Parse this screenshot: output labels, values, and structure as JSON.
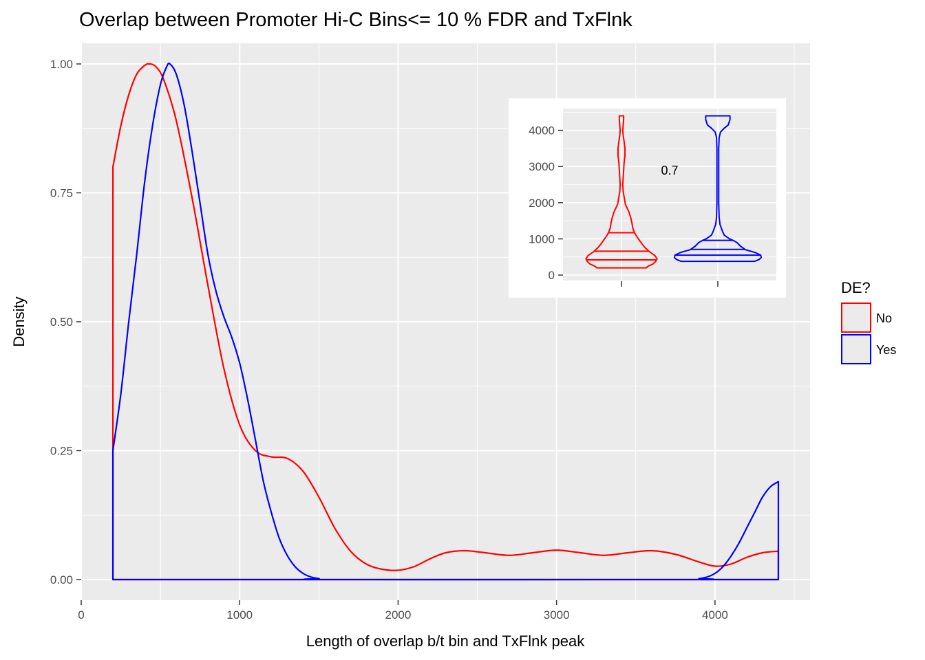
{
  "chart_data": {
    "type": "line",
    "title": "Overlap between Promoter Hi-C Bins<= 10 % FDR and TxFlnk",
    "xlabel": "Length of overlap b/t bin and TxFlnk peak",
    "ylabel": "Density",
    "xlim": [
      0,
      4600
    ],
    "ylim": [
      -0.04,
      1.04
    ],
    "x_ticks": [
      0,
      1000,
      2000,
      3000,
      4000
    ],
    "y_ticks": [
      0.0,
      0.25,
      0.5,
      0.75,
      1.0
    ],
    "x_tick_labels": [
      "0",
      "1000",
      "2000",
      "3000",
      "4000"
    ],
    "y_tick_labels": [
      "0.00",
      "0.25",
      "0.50",
      "0.75",
      "1.00"
    ],
    "grid": true,
    "legend": {
      "title": "DE?",
      "position": "right",
      "entries": [
        {
          "label": "No",
          "color": "#ff0000"
        },
        {
          "label": "Yes",
          "color": "#0000ff"
        }
      ]
    },
    "series": [
      {
        "name": "No",
        "color": "#ff0000",
        "points": [
          [
            200,
            0.0
          ],
          [
            200,
            0.8
          ],
          [
            250,
            0.88
          ],
          [
            300,
            0.94
          ],
          [
            350,
            0.98
          ],
          [
            400,
            0.997
          ],
          [
            430,
            1.0
          ],
          [
            470,
            0.995
          ],
          [
            520,
            0.97
          ],
          [
            600,
            0.89
          ],
          [
            700,
            0.74
          ],
          [
            800,
            0.57
          ],
          [
            900,
            0.41
          ],
          [
            1000,
            0.3
          ],
          [
            1100,
            0.25
          ],
          [
            1200,
            0.238
          ],
          [
            1300,
            0.235
          ],
          [
            1400,
            0.21
          ],
          [
            1500,
            0.16
          ],
          [
            1600,
            0.1
          ],
          [
            1700,
            0.055
          ],
          [
            1800,
            0.03
          ],
          [
            1900,
            0.02
          ],
          [
            2000,
            0.018
          ],
          [
            2100,
            0.025
          ],
          [
            2200,
            0.04
          ],
          [
            2300,
            0.052
          ],
          [
            2420,
            0.056
          ],
          [
            2550,
            0.052
          ],
          [
            2700,
            0.047
          ],
          [
            2850,
            0.052
          ],
          [
            3000,
            0.057
          ],
          [
            3150,
            0.052
          ],
          [
            3300,
            0.047
          ],
          [
            3450,
            0.052
          ],
          [
            3600,
            0.056
          ],
          [
            3750,
            0.049
          ],
          [
            3900,
            0.034
          ],
          [
            4000,
            0.026
          ],
          [
            4100,
            0.03
          ],
          [
            4200,
            0.043
          ],
          [
            4300,
            0.052
          ],
          [
            4400,
            0.055
          ],
          [
            4400,
            0.0
          ]
        ]
      },
      {
        "name": "Yes",
        "color": "#0000ff",
        "points": [
          [
            200,
            0.0
          ],
          [
            200,
            0.25
          ],
          [
            250,
            0.36
          ],
          [
            300,
            0.5
          ],
          [
            350,
            0.63
          ],
          [
            400,
            0.77
          ],
          [
            450,
            0.88
          ],
          [
            500,
            0.96
          ],
          [
            540,
            0.995
          ],
          [
            560,
            1.0
          ],
          [
            600,
            0.98
          ],
          [
            650,
            0.92
          ],
          [
            700,
            0.83
          ],
          [
            750,
            0.73
          ],
          [
            800,
            0.63
          ],
          [
            850,
            0.56
          ],
          [
            900,
            0.51
          ],
          [
            950,
            0.47
          ],
          [
            1000,
            0.42
          ],
          [
            1050,
            0.35
          ],
          [
            1100,
            0.27
          ],
          [
            1150,
            0.19
          ],
          [
            1200,
            0.13
          ],
          [
            1250,
            0.08
          ],
          [
            1300,
            0.047
          ],
          [
            1350,
            0.025
          ],
          [
            1400,
            0.012
          ],
          [
            1450,
            0.005
          ],
          [
            1500,
            0.002
          ],
          [
            1600,
            0.0
          ],
          [
            3800,
            0.0
          ],
          [
            3900,
            0.002
          ],
          [
            3950,
            0.005
          ],
          [
            4000,
            0.012
          ],
          [
            4050,
            0.025
          ],
          [
            4100,
            0.045
          ],
          [
            4150,
            0.07
          ],
          [
            4200,
            0.1
          ],
          [
            4250,
            0.13
          ],
          [
            4300,
            0.16
          ],
          [
            4350,
            0.18
          ],
          [
            4400,
            0.19
          ],
          [
            4400,
            0.0
          ]
        ]
      }
    ],
    "inset": {
      "type": "violin",
      "ylim": [
        -150,
        4600
      ],
      "y_ticks": [
        0,
        1000,
        2000,
        3000,
        4000
      ],
      "y_tick_labels": [
        "0",
        "1000",
        "2000",
        "3000",
        "4000"
      ],
      "annotation": "0.7",
      "annotation_y": 3000,
      "groups": [
        {
          "name": "No",
          "color": "#ff0000",
          "quantiles": [
            420,
            660,
            1170
          ],
          "half_width": [
            [
              200,
              0.57
            ],
            [
              250,
              0.62
            ],
            [
              300,
              0.72
            ],
            [
              380,
              0.79
            ],
            [
              450,
              0.82
            ],
            [
              540,
              0.77
            ],
            [
              650,
              0.64
            ],
            [
              750,
              0.55
            ],
            [
              850,
              0.48
            ],
            [
              950,
              0.42
            ],
            [
              1050,
              0.36
            ],
            [
              1170,
              0.3
            ],
            [
              1300,
              0.26
            ],
            [
              1450,
              0.24
            ],
            [
              1600,
              0.21
            ],
            [
              1750,
              0.17
            ],
            [
              1850,
              0.13
            ],
            [
              1950,
              0.09
            ],
            [
              2100,
              0.07
            ],
            [
              2300,
              0.04
            ],
            [
              2500,
              0.03
            ],
            [
              2700,
              0.04
            ],
            [
              2900,
              0.05
            ],
            [
              3100,
              0.06
            ],
            [
              3300,
              0.08
            ],
            [
              3500,
              0.08
            ],
            [
              3700,
              0.06
            ],
            [
              3850,
              0.04
            ],
            [
              4000,
              0.03
            ],
            [
              4150,
              0.04
            ],
            [
              4300,
              0.05
            ],
            [
              4400,
              0.05
            ]
          ]
        },
        {
          "name": "Yes",
          "color": "#0000ff",
          "quantiles": [
            550,
            710,
            960
          ],
          "half_width": [
            [
              380,
              0.85
            ],
            [
              430,
              0.95
            ],
            [
              480,
              1.0
            ],
            [
              550,
              0.99
            ],
            [
              620,
              0.87
            ],
            [
              700,
              0.64
            ],
            [
              800,
              0.52
            ],
            [
              900,
              0.44
            ],
            [
              960,
              0.35
            ],
            [
              1000,
              0.27
            ],
            [
              1100,
              0.15
            ],
            [
              1200,
              0.11
            ],
            [
              1300,
              0.08
            ],
            [
              1400,
              0.05
            ],
            [
              1600,
              0.03
            ],
            [
              2000,
              0.02
            ],
            [
              2500,
              0.02
            ],
            [
              3000,
              0.02
            ],
            [
              3500,
              0.02
            ],
            [
              3800,
              0.03
            ],
            [
              3950,
              0.06
            ],
            [
              4050,
              0.14
            ],
            [
              4150,
              0.24
            ],
            [
              4300,
              0.28
            ],
            [
              4400,
              0.28
            ]
          ]
        }
      ]
    }
  }
}
